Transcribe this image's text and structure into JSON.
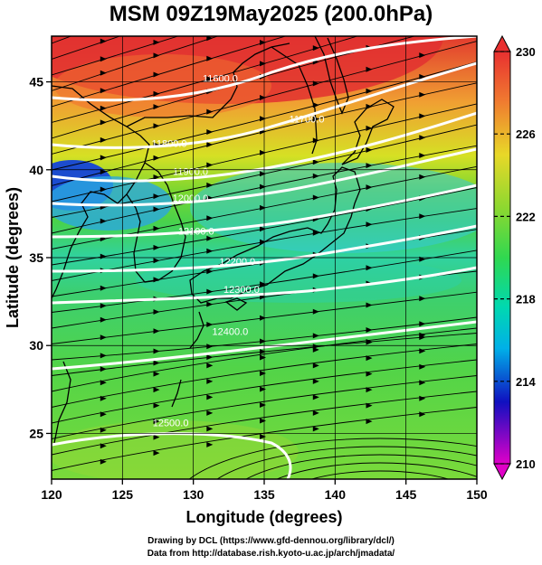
{
  "title": "MSM 09Z19May2025 (200.0hPa)",
  "credits": [
    "Drawing by DCL (https://www.gfd-dennou.org/library/dcl/)",
    "Data from http://database.rish.kyoto-u.ac.jp/arch/jmadata/"
  ],
  "map": {
    "xlabel": "Longitude (degrees)",
    "ylabel": "Latitude  (degrees)",
    "lon_range": [
      120,
      150
    ],
    "lat_range": [
      22.4,
      47.6
    ],
    "lon_ticks": [
      "120",
      "125",
      "130",
      "135",
      "140",
      "145",
      "150"
    ],
    "lat_ticks": [
      "25",
      "30",
      "35",
      "40",
      "45"
    ],
    "contour_labels": [
      {
        "text": "11600.0",
        "lon": 131.9,
        "lat": 45.0
      },
      {
        "text": "11700.0",
        "lon": 138.0,
        "lat": 42.7
      },
      {
        "text": "11800.0",
        "lon": 128.3,
        "lat": 41.3
      },
      {
        "text": "11900.0",
        "lon": 129.8,
        "lat": 39.7
      },
      {
        "text": "12000.0",
        "lon": 129.8,
        "lat": 38.2
      },
      {
        "text": "12100.0",
        "lon": 130.2,
        "lat": 36.3
      },
      {
        "text": "12200.0",
        "lon": 133.1,
        "lat": 34.6
      },
      {
        "text": "12300.0",
        "lon": 133.4,
        "lat": 33.0
      },
      {
        "text": "12400.0",
        "lon": 132.6,
        "lat": 30.6
      },
      {
        "text": "12500.0",
        "lon": 128.4,
        "lat": 25.4
      }
    ]
  },
  "colorbar": {
    "min": 210,
    "max": 230,
    "tick_labels": [
      "230",
      "226",
      "222",
      "218",
      "214",
      "210"
    ],
    "colors": [
      "#e000c8",
      "#1010c0",
      "#00b0e8",
      "#00d8b0",
      "#30d840",
      "#c8e628",
      "#f0b030",
      "#e83030"
    ]
  }
}
